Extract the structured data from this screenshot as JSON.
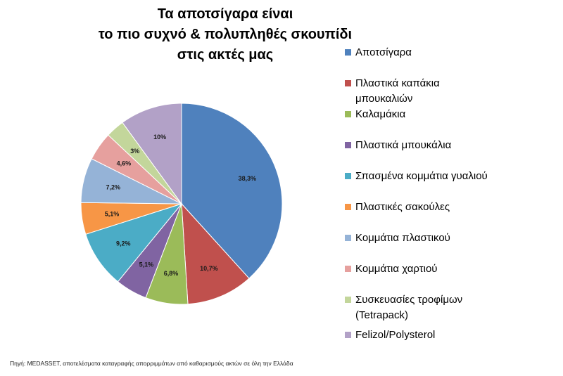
{
  "chart_data": {
    "type": "pie",
    "title_lines": [
      "Τα αποτσίγαρα είναι",
      "το πιο συχνό & πολυπληθές σκουπίδι",
      "στις ακτές μας"
    ],
    "slices": [
      {
        "label": "Αποτσίγαρα",
        "label_lines": [
          "Αποτσίγαρα"
        ],
        "value": 38.3,
        "value_label": "38,3%",
        "color": "#4f81bd"
      },
      {
        "label": "Πλαστικά καπάκια μπουκαλιών",
        "label_lines": [
          "Πλαστικά καπάκια",
          "μπουκαλιών"
        ],
        "value": 10.7,
        "value_label": "10,7%",
        "color": "#c0504d"
      },
      {
        "label": "Καλαμάκια",
        "label_lines": [
          "Καλαμάκια"
        ],
        "value": 6.8,
        "value_label": "6,8%",
        "color": "#9bbb59"
      },
      {
        "label": "Πλαστικά μπουκάλια",
        "label_lines": [
          "Πλαστικά μπουκάλια"
        ],
        "value": 5.1,
        "value_label": "5,1%",
        "color": "#8064a2"
      },
      {
        "label": "Σπασμένα κομμάτια γυαλιού",
        "label_lines": [
          "Σπασμένα κομμάτια γυαλιού"
        ],
        "value": 9.2,
        "value_label": "9,2%",
        "color": "#4bacc6"
      },
      {
        "label": "Πλαστικές σακούλες",
        "label_lines": [
          "Πλαστικές σακούλες"
        ],
        "value": 5.1,
        "value_label": "5,1%",
        "color": "#f79646"
      },
      {
        "label": "Κομμάτια πλαστικού",
        "label_lines": [
          "Κομμάτια πλαστικού"
        ],
        "value": 7.2,
        "value_label": "7,2%",
        "color": "#95b3d7"
      },
      {
        "label": "Κομμάτια χαρτιού",
        "label_lines": [
          "Κομμάτια χαρτιού"
        ],
        "value": 4.6,
        "value_label": "4,6%",
        "color": "#e6a09e"
      },
      {
        "label": "Συσκευασίες τροφίμων (Tetrapack)",
        "label_lines": [
          "Συσκευασίες τροφίμων",
          "(Tetrapack)"
        ],
        "value": 3,
        "value_label": "3%",
        "color": "#c3d69b"
      },
      {
        "label": "Felizol/Polysterol",
        "label_lines": [
          "Felizol/Polysterol"
        ],
        "value": 10,
        "value_label": "10%",
        "color": "#b2a1c7"
      }
    ],
    "legend_position": "right",
    "start_angle": "12 o'clock",
    "direction": "clockwise"
  },
  "source_note": "Πηγή: MEDASSET, αποτελέσματα καταγραφής απορριμμάτων από καθαρισμούς ακτών σε όλη την Ελλάδα"
}
